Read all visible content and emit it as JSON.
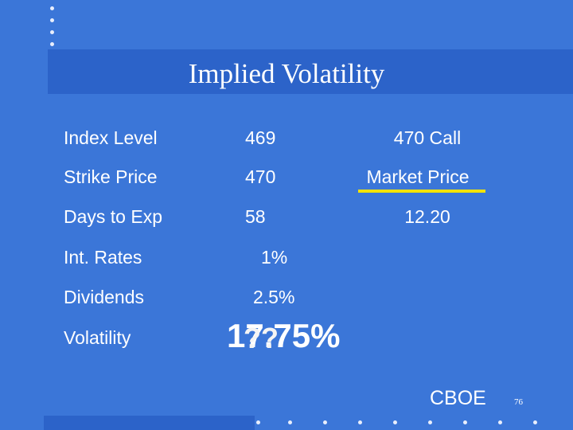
{
  "title": "Implied Volatility",
  "rows": [
    {
      "label": "Index Level",
      "value": "469"
    },
    {
      "label": "Strike Price",
      "value": "470"
    },
    {
      "label": "Days to Exp",
      "value": "58"
    },
    {
      "label": "Int. Rates",
      "value": "1%"
    },
    {
      "label": "Dividends",
      "value": "2.5%"
    },
    {
      "label": "Volatility",
      "value": "17.75%"
    }
  ],
  "unknown": "??",
  "option": {
    "name": "470 Call",
    "price_label": "Market Price",
    "price": "12.20"
  },
  "footer": {
    "source": "CBOE",
    "page": "76"
  }
}
